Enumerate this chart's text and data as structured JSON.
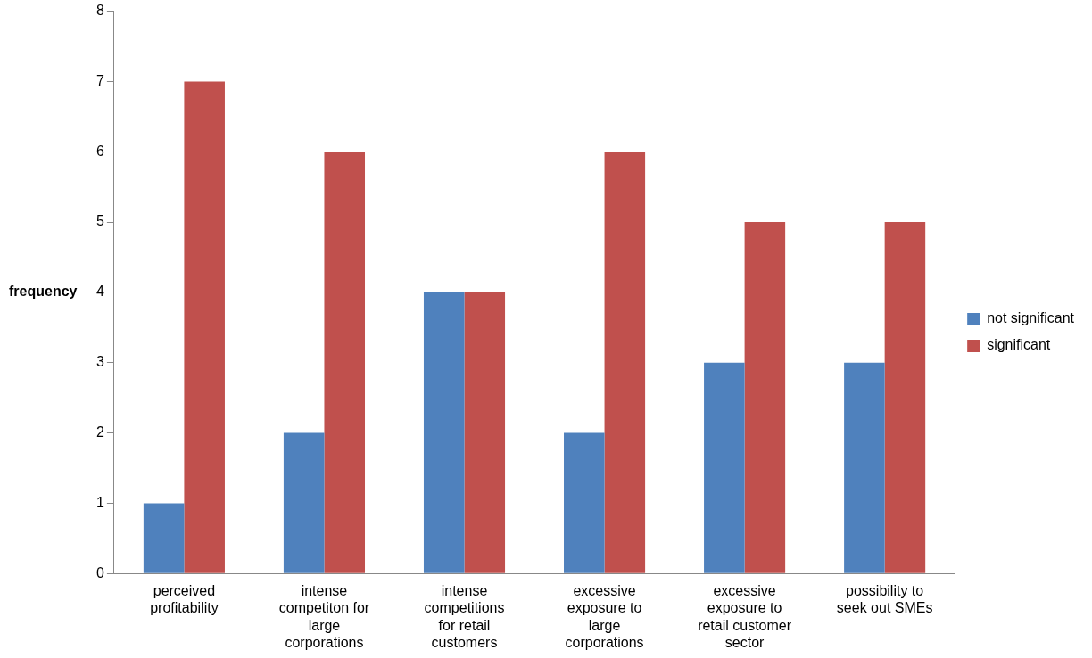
{
  "chart_data": {
    "type": "bar",
    "ylabel": "frequency",
    "categories": [
      "perceived profitability",
      "intense competiton for large corporations",
      "intense competitions for retail customers",
      "excessive exposure to large corporations",
      "excessive exposure to retail customer sector",
      "possibility to seek out SMEs"
    ],
    "series": [
      {
        "name": "not significant",
        "color": "#4f81bd",
        "values": [
          1,
          2,
          4,
          2,
          3,
          3
        ]
      },
      {
        "name": "significant",
        "color": "#c0504d",
        "values": [
          7,
          6,
          4,
          6,
          5,
          5
        ]
      }
    ],
    "ylim": [
      0,
      8
    ],
    "yticks": [
      0,
      1,
      2,
      3,
      4,
      5,
      6,
      7,
      8
    ],
    "grid": false,
    "legend": "right"
  }
}
